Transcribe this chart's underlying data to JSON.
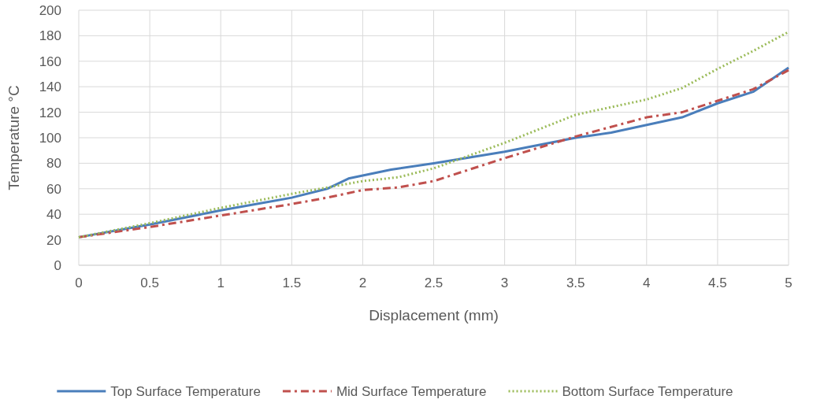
{
  "chart_data": {
    "type": "line",
    "xlabel": "Displacement (mm)",
    "ylabel": "Temperature °C",
    "xlim": [
      0,
      5
    ],
    "xticks": [
      0,
      0.5,
      1,
      1.5,
      2,
      2.5,
      3,
      3.5,
      4,
      4.5,
      5
    ],
    "ylim": [
      0,
      200
    ],
    "yticks": [
      0,
      20,
      40,
      60,
      80,
      100,
      120,
      140,
      160,
      180,
      200
    ],
    "grid": true,
    "legend": "bottom",
    "series": [
      {
        "name": "Top Surface Temperature",
        "color": "#4a7ebb",
        "line_style": "solid",
        "x": [
          0,
          0.5,
          1,
          1.5,
          1.75,
          1.9,
          2.2,
          2.5,
          3,
          3.5,
          3.75,
          4,
          4.25,
          4.5,
          4.75,
          5
        ],
        "values": [
          22,
          32,
          43,
          53,
          60,
          68,
          75,
          80,
          89,
          100,
          104,
          110,
          116,
          127,
          136,
          155
        ]
      },
      {
        "name": "Mid Surface Temperature",
        "color": "#c0504d",
        "line_style": "dashed",
        "x": [
          0,
          0.5,
          1,
          1.5,
          1.75,
          2,
          2.25,
          2.5,
          3,
          3.5,
          4,
          4.25,
          4.5,
          4.75,
          5
        ],
        "values": [
          22,
          30,
          39,
          48,
          53,
          59,
          61,
          66,
          84,
          101,
          116,
          120,
          129,
          138,
          153
        ]
      },
      {
        "name": "Bottom Surface Temperature",
        "color": "#9bbb59",
        "line_style": "dotted",
        "x": [
          0,
          0.5,
          1,
          1.5,
          1.75,
          2,
          2.25,
          2.5,
          3,
          3.5,
          4,
          4.25,
          4.5,
          4.75,
          5
        ],
        "values": [
          22,
          33,
          45,
          56,
          61,
          66,
          69,
          76,
          96,
          118,
          130,
          139,
          154,
          168,
          183
        ]
      }
    ]
  }
}
